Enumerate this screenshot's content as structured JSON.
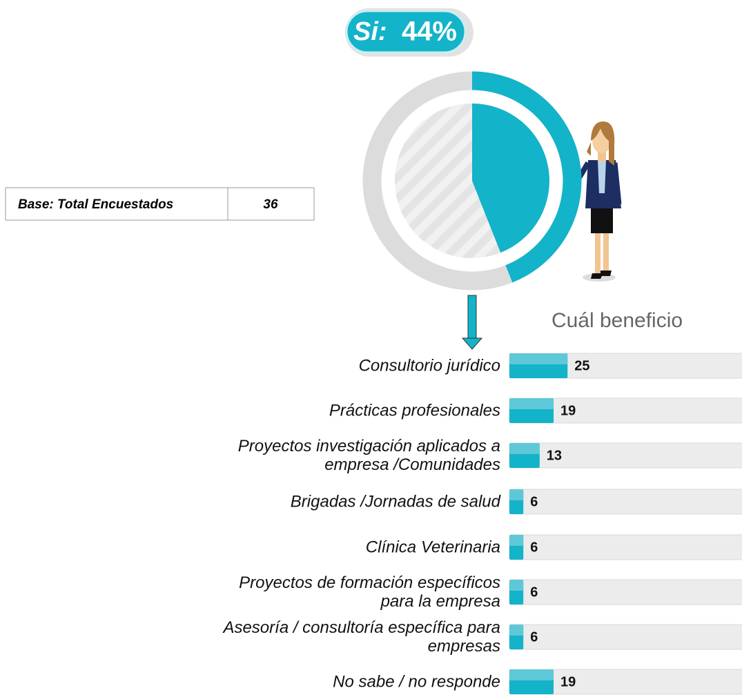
{
  "chart_data": {
    "type": "bar",
    "title": "Cuál beneficio",
    "categories": [
      "Consultorio jurídico",
      "Prácticas profesionales",
      "Proyectos investigación aplicados a\nempresa /Comunidades",
      "Brigadas /Jornadas de salud",
      "Clínica Veterinaria",
      "Proyectos de formación específicos\npara la empresa",
      "Asesoría / consultoría específica para\nempresas",
      "No sabe / no responde"
    ],
    "values": [
      25,
      19,
      13,
      6,
      6,
      6,
      6,
      19
    ],
    "color": "#13b3c9",
    "xlim": [
      0,
      100
    ],
    "summary": {
      "label": "Si:",
      "value": 44,
      "value_label": "44%",
      "color": "#13b3c9"
    },
    "base": {
      "label": "Base: Total Encuestados",
      "value": 36
    }
  }
}
